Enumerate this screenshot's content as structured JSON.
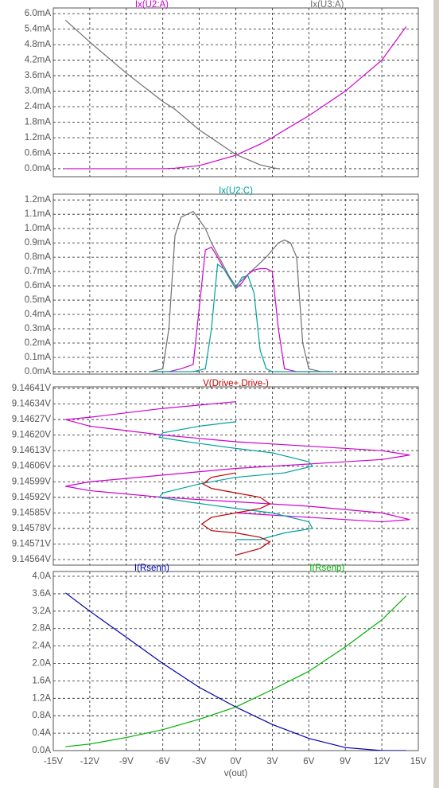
{
  "chart_data": [
    {
      "type": "line",
      "x": [
        -14,
        -12,
        -9,
        -6,
        -5,
        -3,
        0,
        2,
        3,
        3.5,
        6,
        9,
        12,
        14
      ],
      "series": [
        {
          "name": "Ix(U2:A)",
          "color": "#d000d0",
          "values": [
            0,
            0,
            0,
            0,
            0.02,
            0.12,
            0.52,
            0.95,
            1.2,
            1.35,
            2.05,
            3.0,
            4.2,
            5.5
          ]
        },
        {
          "name": "Ix(U3:A)",
          "color": "#707070",
          "values": [
            5.75,
            4.9,
            3.7,
            2.6,
            2.3,
            1.5,
            0.55,
            0.15,
            0.04,
            0,
            null,
            null,
            null,
            null
          ]
        }
      ],
      "xlim": [
        -15,
        15
      ],
      "xticks": [
        {
          "value": -15,
          "label": "-15V"
        },
        {
          "value": -12,
          "label": "-12V"
        },
        {
          "value": -9,
          "label": "-9V"
        },
        {
          "value": -6,
          "label": "-6V"
        },
        {
          "value": -3,
          "label": "-3V"
        },
        {
          "value": 0,
          "label": "0V"
        },
        {
          "value": 3,
          "label": "3V"
        },
        {
          "value": 6,
          "label": "6V"
        },
        {
          "value": 9,
          "label": "9V"
        },
        {
          "value": 12,
          "label": "12V"
        },
        {
          "value": 15,
          "label": "15V"
        }
      ],
      "ylim": [
        -0.31,
        6.22
      ],
      "yticks": [
        {
          "value": 0,
          "label": "0.0mA"
        },
        {
          "value": 0.6,
          "label": "0.6mA"
        },
        {
          "value": 1.2,
          "label": "1.2mA"
        },
        {
          "value": 1.8,
          "label": "1.8mA"
        },
        {
          "value": 2.4,
          "label": "2.4mA"
        },
        {
          "value": 3,
          "label": "3.0mA"
        },
        {
          "value": 3.6,
          "label": "3.6mA"
        },
        {
          "value": 4.2,
          "label": "4.2mA"
        },
        {
          "value": 4.8,
          "label": "4.8mA"
        },
        {
          "value": 5.4,
          "label": "5.4mA"
        },
        {
          "value": 6,
          "label": "6.0mA"
        }
      ],
      "grid": true
    },
    {
      "type": "line",
      "x": [
        -7,
        -6,
        -5.5,
        -5,
        -4.5,
        -3.5,
        -2.5,
        -2,
        -1.5,
        -1,
        -0.5,
        0,
        0.5,
        1,
        1.5,
        2,
        2.5,
        3,
        3.5,
        4,
        4.5,
        5,
        5.5,
        6,
        7,
        8
      ],
      "series": [
        {
          "color": "#707070",
          "values": [
            0,
            0.02,
            0.3,
            0.95,
            1.08,
            1.12,
            1.0,
            0.9,
            0.82,
            0.74,
            0.66,
            0.6,
            0.64,
            0.68,
            0.72,
            0.76,
            0.8,
            0.85,
            0.9,
            0.92,
            0.9,
            0.8,
            0.2,
            0.02,
            0,
            0
          ]
        },
        {
          "color": "#d000d0",
          "values": [
            0,
            0,
            0,
            0.01,
            0.02,
            0.05,
            0.85,
            0.87,
            0.8,
            0.72,
            0.65,
            0.58,
            0.62,
            0.68,
            0.71,
            0.72,
            0.72,
            0.7,
            0.3,
            0.02,
            0.01,
            0,
            0,
            0,
            0,
            0
          ]
        },
        {
          "name": "Ix(U2:C)",
          "color": "#00a0a0",
          "values": [
            0,
            0,
            0,
            0,
            0,
            0,
            0.02,
            0.3,
            0.75,
            0.72,
            0.65,
            0.58,
            0.66,
            0.67,
            0.55,
            0.15,
            0.02,
            0,
            0,
            0,
            0,
            0,
            0,
            0,
            0,
            0
          ]
        }
      ],
      "xlim": [
        -15,
        15
      ],
      "xticks": [
        {
          "value": -15,
          "label": "-15V"
        },
        {
          "value": -12,
          "label": "-12V"
        },
        {
          "value": -9,
          "label": "-9V"
        },
        {
          "value": -6,
          "label": "-6V"
        },
        {
          "value": -3,
          "label": "-3V"
        },
        {
          "value": 0,
          "label": "0V"
        },
        {
          "value": 3,
          "label": "3V"
        },
        {
          "value": 6,
          "label": "6V"
        },
        {
          "value": 9,
          "label": "9V"
        },
        {
          "value": 12,
          "label": "12V"
        },
        {
          "value": 15,
          "label": "15V"
        }
      ],
      "ylim": [
        -0.017,
        1.24
      ],
      "yticks": [
        {
          "value": 0,
          "label": "0.0mA"
        },
        {
          "value": 0.1,
          "label": "0.1mA"
        },
        {
          "value": 0.2,
          "label": "0.2mA"
        },
        {
          "value": 0.3,
          "label": "0.3mA"
        },
        {
          "value": 0.4,
          "label": "0.4mA"
        },
        {
          "value": 0.5,
          "label": "0.5mA"
        },
        {
          "value": 0.6,
          "label": "0.6mA"
        },
        {
          "value": 0.7,
          "label": "0.7mA"
        },
        {
          "value": 0.8,
          "label": "0.8mA"
        },
        {
          "value": 0.9,
          "label": "0.9mA"
        },
        {
          "value": 1.0,
          "label": "1.0mA"
        },
        {
          "value": 1.1,
          "label": "1.1mA"
        },
        {
          "value": 1.2,
          "label": "1.2mA"
        }
      ],
      "grid": true
    },
    {
      "type": "line",
      "series": [
        {
          "color": "#d000d0",
          "x": [
            0,
            -6,
            -12,
            -14,
            -12,
            -6,
            0,
            6,
            12,
            14.3,
            12,
            6,
            0,
            -6,
            -12,
            -14,
            -12,
            -6,
            0,
            6,
            12,
            14.3,
            12,
            6,
            0
          ],
          "values": [
            9.14635,
            9.14632,
            9.14628,
            9.14627,
            9.14624,
            9.1462,
            9.14617,
            9.14615,
            9.14613,
            9.14611,
            9.14609,
            9.14607,
            9.14605,
            9.14602,
            9.14599,
            9.14597,
            9.14595,
            9.14592,
            9.1459,
            9.14588,
            9.14585,
            9.14582,
            9.14581,
            9.14583,
            9.14585
          ]
        },
        {
          "color": "#00a0a0",
          "x": [
            0,
            -3,
            -6,
            -6.3,
            -4,
            0,
            3,
            6,
            6.3,
            4,
            0,
            -3,
            -6,
            -6.3,
            -4,
            0,
            3,
            6,
            6.3,
            4,
            2,
            0
          ],
          "values": [
            9.14626,
            9.14624,
            9.14621,
            9.14619,
            9.14617,
            9.14614,
            9.14612,
            9.14608,
            9.14606,
            9.14603,
            9.14601,
            9.14598,
            9.14594,
            9.14592,
            9.1459,
            9.14587,
            9.14585,
            9.14581,
            9.14578,
            9.14576,
            9.14573,
            9.14573
          ]
        },
        {
          "name": "V(Drive+,Drive-)",
          "color": "#c00000",
          "x": [
            0,
            -2,
            -2.7,
            -2,
            0,
            2,
            2.8,
            2,
            0,
            -2,
            -2.8,
            -2,
            0,
            2,
            2.8,
            2,
            0
          ],
          "values": [
            9.14603,
            9.14601,
            9.14598,
            9.14596,
            9.14594,
            9.14592,
            9.14589,
            9.14587,
            9.14585,
            9.14583,
            9.1458,
            9.14577,
            9.14576,
            9.14574,
            9.14572,
            9.14569,
            9.14566
          ]
        }
      ],
      "xlim": [
        -15,
        15
      ],
      "xticks": [
        {
          "value": -15,
          "label": "-15V"
        },
        {
          "value": -12,
          "label": "-12V"
        },
        {
          "value": -9,
          "label": "-9V"
        },
        {
          "value": -6,
          "label": "-6V"
        },
        {
          "value": -3,
          "label": "-3V"
        },
        {
          "value": 0,
          "label": "0V"
        },
        {
          "value": 3,
          "label": "3V"
        },
        {
          "value": 6,
          "label": "6V"
        },
        {
          "value": 9,
          "label": "9V"
        },
        {
          "value": 12,
          "label": "12V"
        },
        {
          "value": 15,
          "label": "15V"
        }
      ],
      "ylim": [
        9.145615,
        9.146417
      ],
      "yticks": [
        {
          "value": 9.14564,
          "label": "9.14564V"
        },
        {
          "value": 9.14571,
          "label": "9.14571V"
        },
        {
          "value": 9.14578,
          "label": "9.14578V"
        },
        {
          "value": 9.14585,
          "label": "9.14585V"
        },
        {
          "value": 9.14592,
          "label": "9.14592V"
        },
        {
          "value": 9.14599,
          "label": "9.14599V"
        },
        {
          "value": 9.14606,
          "label": "9.14606V"
        },
        {
          "value": 9.14613,
          "label": "9.14613V"
        },
        {
          "value": 9.1462,
          "label": "9.14620V"
        },
        {
          "value": 9.14627,
          "label": "9.14627V"
        },
        {
          "value": 9.14634,
          "label": "9.14634V"
        },
        {
          "value": 9.14641,
          "label": "9.14641V"
        }
      ],
      "grid": true
    },
    {
      "type": "line",
      "x": [
        -14,
        -12,
        -9,
        -6,
        -3,
        0,
        3,
        6,
        9,
        12,
        14
      ],
      "series": [
        {
          "name": "I(Rsenn)",
          "color": "#0000b0",
          "values": [
            3.62,
            3.2,
            2.6,
            2.0,
            1.45,
            1.0,
            0.6,
            0.28,
            0.07,
            0,
            0
          ]
        },
        {
          "name": "I(Rsenp)",
          "color": "#00b000",
          "values": [
            0.09,
            0.15,
            0.3,
            0.48,
            0.72,
            1.0,
            1.4,
            1.82,
            2.38,
            3.0,
            3.55
          ]
        }
      ],
      "xlabel": "v(out)",
      "xlim": [
        -15,
        15
      ],
      "xticks": [
        {
          "value": -15,
          "label": "-15V"
        },
        {
          "value": -12,
          "label": "-12V"
        },
        {
          "value": -9,
          "label": "-9V"
        },
        {
          "value": -6,
          "label": "-6V"
        },
        {
          "value": -3,
          "label": "-3V"
        },
        {
          "value": 0,
          "label": "0V"
        },
        {
          "value": 3,
          "label": "3V"
        },
        {
          "value": 6,
          "label": "6V"
        },
        {
          "value": 9,
          "label": "9V"
        },
        {
          "value": 12,
          "label": "12V"
        },
        {
          "value": 15,
          "label": "15V"
        }
      ],
      "ylim": [
        0,
        4.11
      ],
      "yticks": [
        {
          "value": 0,
          "label": "0.0A"
        },
        {
          "value": 0.4,
          "label": "0.4A"
        },
        {
          "value": 0.8,
          "label": "0.8A"
        },
        {
          "value": 1.2,
          "label": "1.2A"
        },
        {
          "value": 1.6,
          "label": "1.6A"
        },
        {
          "value": 2.0,
          "label": "2.0A"
        },
        {
          "value": 2.4,
          "label": "2.4A"
        },
        {
          "value": 2.8,
          "label": "2.8A"
        },
        {
          "value": 3.2,
          "label": "3.2A"
        },
        {
          "value": 3.6,
          "label": "3.6A"
        },
        {
          "value": 4.0,
          "label": "4.0A"
        }
      ],
      "grid": true
    }
  ]
}
